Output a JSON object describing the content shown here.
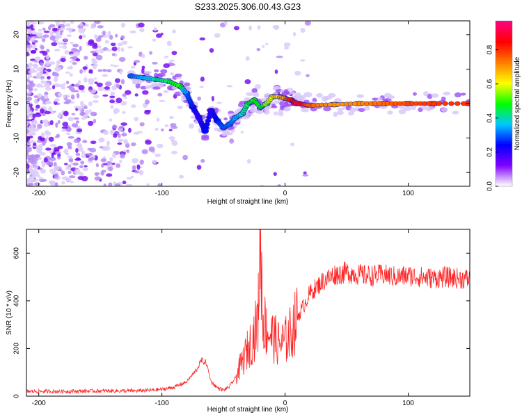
{
  "figure_title": "S233.2025.306.00.43.G23",
  "chart_data": [
    {
      "type": "heatmap",
      "title": "S233.2025.306.00.43.G23",
      "xlabel": "Height of straight line (km)",
      "ylabel": "Frequency (Hz)",
      "xlim": [
        -210,
        150
      ],
      "ylim": [
        -24,
        24
      ],
      "xticks": [
        -200,
        -100,
        0,
        100
      ],
      "yticks": [
        -20,
        -10,
        0,
        10,
        20
      ],
      "colorbar": {
        "label": "Normalized spectral amplitude",
        "range": [
          0,
          0.97
        ],
        "ticks": [
          0.0,
          0.2,
          0.4,
          0.6,
          0.8
        ],
        "colormap": "rainbow (white-violet-blue-cyan-green-yellow-red-magenta)",
        "colors": [
          "#ffffff",
          "#8000ff",
          "#0000ff",
          "#00c8ff",
          "#00ff00",
          "#ffff00",
          "#ff7f00",
          "#ff0000",
          "#ff0080"
        ]
      },
      "ridge": {
        "name": "Doppler ridge",
        "x": [
          -125,
          -115,
          -105,
          -95,
          -85,
          -80,
          -75,
          -70,
          -65,
          -60,
          -55,
          -50,
          -45,
          -40,
          -35,
          -30,
          -25,
          -20,
          -15,
          -10,
          -5,
          0,
          5,
          10,
          20,
          40,
          60,
          80,
          100,
          120,
          150
        ],
        "y": [
          8,
          7.5,
          7,
          6.5,
          5,
          3,
          -1,
          -4,
          -8,
          -2,
          -5,
          -7,
          -6,
          -4,
          -3,
          0,
          1,
          -1,
          0,
          2,
          2,
          1.5,
          1,
          0,
          -0.5,
          -0.3,
          0,
          0,
          0,
          0,
          0
        ],
        "amplitude": [
          0.3,
          0.35,
          0.4,
          0.45,
          0.5,
          0.3,
          0.25,
          0.2,
          0.25,
          0.2,
          0.25,
          0.3,
          0.3,
          0.35,
          0.4,
          0.45,
          0.5,
          0.45,
          0.55,
          0.6,
          0.65,
          0.7,
          0.85,
          0.9,
          0.75,
          0.7,
          0.72,
          0.75,
          0.78,
          0.8,
          0.8
        ]
      }
    },
    {
      "type": "line",
      "xlabel": "Height of straight line (km)",
      "ylabel": "SNR (10 * v/v)",
      "xlim": [
        -210,
        150
      ],
      "ylim": [
        0,
        700
      ],
      "xticks": [
        -200,
        -100,
        0,
        100
      ],
      "yticks": [
        0,
        200,
        400,
        600
      ],
      "series": [
        {
          "name": "SNR",
          "color": "#ff2222",
          "x": [
            -210,
            -180,
            -150,
            -120,
            -100,
            -90,
            -80,
            -72,
            -68,
            -64,
            -60,
            -55,
            -50,
            -45,
            -40,
            -35,
            -30,
            -25,
            -22,
            -20,
            -18,
            -15,
            -10,
            -5,
            0,
            5,
            10,
            20,
            30,
            40,
            50,
            60,
            70,
            80,
            90,
            100,
            110,
            120,
            130,
            140,
            150
          ],
          "y": [
            20,
            20,
            22,
            22,
            28,
            38,
            60,
            110,
            150,
            140,
            60,
            35,
            25,
            40,
            80,
            140,
            200,
            260,
            320,
            690,
            330,
            280,
            250,
            220,
            230,
            270,
            330,
            430,
            480,
            510,
            520,
            510,
            505,
            510,
            500,
            505,
            500,
            495,
            500,
            495,
            490
          ]
        }
      ]
    }
  ]
}
